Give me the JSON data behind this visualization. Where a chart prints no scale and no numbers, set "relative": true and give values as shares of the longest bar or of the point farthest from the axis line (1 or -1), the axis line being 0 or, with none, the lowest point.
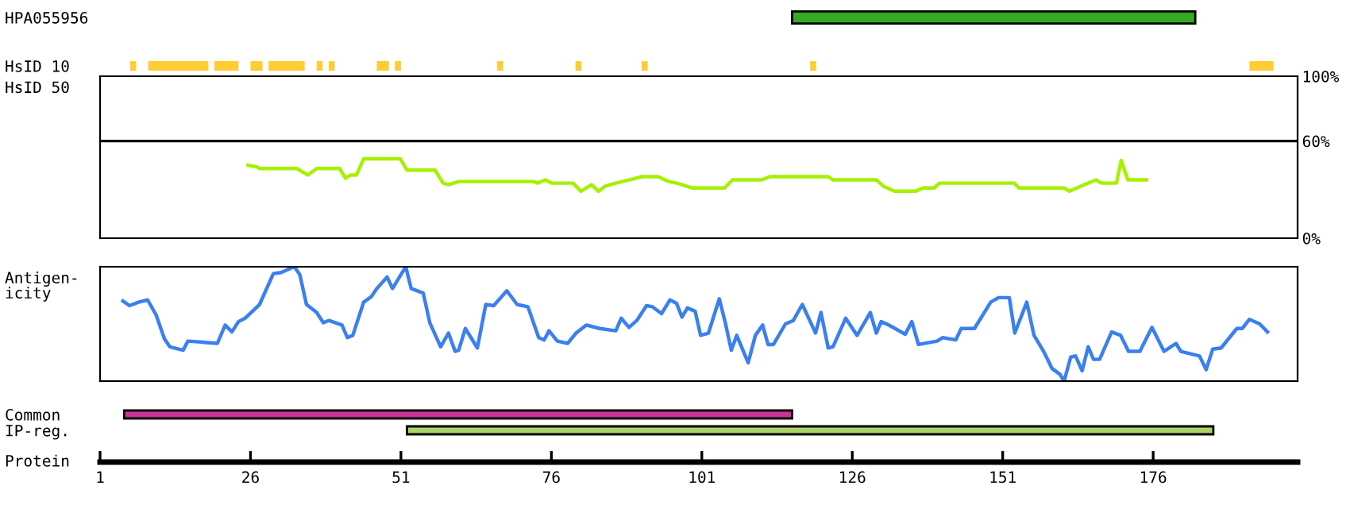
{
  "chart_data": [
    {
      "type": "bar",
      "orientation": "horizontal",
      "categories": [
        "HPA055956"
      ],
      "base": [
        116
      ],
      "values": [
        67
      ],
      "color": "#33aa22",
      "xlim": [
        1,
        200
      ],
      "tick_labels": "y",
      "grid": false,
      "legend": false
    },
    {
      "type": "bar",
      "orientation": "horizontal",
      "categories": [
        "HsID 10"
      ],
      "xlim": [
        1,
        200
      ],
      "tick_labels": "y",
      "legend": false,
      "series": [
        {
          "color": "#ffcc33",
          "base": [
            6
          ],
          "values": [
            1
          ]
        },
        {
          "color": "#ffcc33",
          "base": [
            9
          ],
          "values": [
            10
          ]
        },
        {
          "color": "#ffcc33",
          "base": [
            20
          ],
          "values": [
            4
          ]
        },
        {
          "color": "#ffcc33",
          "base": [
            26
          ],
          "values": [
            2
          ]
        },
        {
          "color": "#ffcc33",
          "base": [
            29
          ],
          "values": [
            6
          ]
        },
        {
          "color": "#ffcc33",
          "base": [
            37
          ],
          "values": [
            1
          ]
        },
        {
          "color": "#ffcc33",
          "base": [
            39
          ],
          "values": [
            1
          ]
        },
        {
          "color": "#ffcc33",
          "base": [
            47
          ],
          "values": [
            2
          ]
        },
        {
          "color": "#ffcc33",
          "base": [
            50
          ],
          "values": [
            1
          ]
        },
        {
          "color": "#ffcc33",
          "base": [
            67
          ],
          "values": [
            1
          ]
        },
        {
          "color": "#ffcc33",
          "base": [
            80
          ],
          "values": [
            1
          ]
        },
        {
          "color": "#ffcc33",
          "base": [
            91
          ],
          "values": [
            1
          ]
        },
        {
          "color": "#ffcc33",
          "base": [
            119
          ],
          "values": [
            1
          ]
        },
        {
          "color": "#ffcc33",
          "base": [
            192
          ],
          "values": [
            4
          ]
        }
      ]
    },
    {
      "type": "line",
      "ylabel": "HsID 50",
      "xlim": [
        1,
        200
      ],
      "ylim": [
        0,
        100
      ],
      "yticks": [
        {
          "value": 0,
          "label": "0%"
        },
        {
          "value": 60,
          "label": "60%"
        },
        {
          "value": 100,
          "label": "100%"
        }
      ],
      "tick_labels": "y",
      "grid": false,
      "legend": false,
      "marker": "none",
      "line_style": "solid",
      "ref_lines": [
        {
          "axis": "y",
          "value": 60,
          "color": "#000000"
        }
      ],
      "series": [
        {
          "color": "#a6f000",
          "x": [
            25.6,
            27.1,
            27.5,
            33.7,
            35.5,
            37.0,
            40.8,
            41.8,
            42.6,
            43.6,
            44.8,
            50.9,
            52.0,
            56.7,
            58.0,
            58.9,
            60.6,
            73.0,
            73.7,
            75.0,
            76.1,
            79.6,
            80.9,
            82.7,
            83.8,
            84.9,
            86.7,
            88.9,
            91.1,
            93.7,
            95.5,
            96.8,
            99.5,
            104.8,
            106.1,
            110.9,
            112.3,
            122.0,
            122.8,
            130.0,
            131.2,
            133.0,
            136.5,
            137.8,
            139.6,
            140.5,
            152.9,
            153.7,
            161.2,
            162.1,
            163.9,
            166.5,
            167.4,
            169.9,
            170.7,
            171.8,
            174.9
          ],
          "values": [
            45,
            44,
            43,
            43,
            39,
            43,
            43,
            37,
            39,
            39,
            49,
            49,
            42,
            42,
            34,
            33,
            35,
            35,
            34,
            36,
            34,
            34,
            29,
            33,
            29,
            32,
            34,
            36,
            38,
            38,
            35,
            34,
            31,
            31,
            36,
            36,
            38,
            38,
            36,
            36,
            32,
            29,
            29,
            31,
            31,
            34,
            34,
            31,
            31,
            29,
            32,
            36,
            34,
            34,
            48,
            36,
            36
          ]
        }
      ]
    },
    {
      "type": "line",
      "ylabel": "Antigen-\nicity",
      "relative": true,
      "xlim": [
        1,
        200
      ],
      "tick_labels": false,
      "grid": false,
      "legend": false,
      "marker": "none",
      "line_style": "solid",
      "series": [
        {
          "color": "#3b7ff0",
          "x": [
            4.8,
            5.9,
            7.4,
            8.9,
            10.3,
            11.7,
            12.6,
            14.8,
            15.6,
            20.5,
            21.8,
            22.9,
            24.0,
            25.1,
            27.5,
            29.8,
            31.1,
            32.8,
            33.3,
            34.2,
            35.3,
            37.0,
            38.1,
            39.0,
            41.2,
            42.1,
            43.0,
            44.8,
            46.1,
            47.0,
            48.7,
            49.6,
            51.8,
            52.7,
            54.7,
            55.8,
            57.6,
            58.9,
            60.0,
            60.6,
            61.7,
            63.7,
            65.1,
            66.4,
            68.6,
            70.3,
            72.1,
            73.9,
            74.8,
            75.6,
            77.0,
            78.7,
            80.1,
            81.8,
            84.0,
            86.7,
            87.6,
            88.9,
            90.2,
            91.8,
            92.8,
            94.3,
            95.7,
            96.8,
            97.7,
            98.6,
            99.9,
            100.8,
            102.1,
            103.9,
            104.9,
            105.9,
            106.8,
            108.7,
            109.9,
            111.1,
            112.0,
            112.9,
            114.9,
            116.2,
            117.7,
            119.9,
            120.8,
            122.0,
            122.8,
            124.9,
            126.8,
            129.0,
            130.0,
            130.8,
            132.1,
            134.8,
            135.9,
            137.0,
            140.1,
            141.0,
            143.2,
            144.1,
            146.3,
            149.0,
            150.3,
            152.1,
            153.0,
            155.0,
            156.2,
            157.8,
            159.2,
            160.5,
            161.2,
            162.3,
            163.1,
            164.2,
            165.2,
            166.1,
            167.1,
            169.1,
            170.6,
            171.9,
            173.8,
            175.8,
            177.8,
            179.8,
            180.6,
            183.7,
            184.8,
            185.9,
            187.3,
            189.9,
            190.8,
            192.0,
            193.7,
            195.0
          ],
          "values": [
            0.7,
            0.66,
            0.69,
            0.71,
            0.58,
            0.37,
            0.3,
            0.27,
            0.35,
            0.33,
            0.49,
            0.43,
            0.52,
            0.55,
            0.67,
            0.94,
            0.95,
            0.99,
            1.0,
            0.93,
            0.67,
            0.6,
            0.51,
            0.53,
            0.49,
            0.38,
            0.4,
            0.69,
            0.74,
            0.81,
            0.91,
            0.81,
            1.0,
            0.81,
            0.77,
            0.51,
            0.3,
            0.42,
            0.26,
            0.27,
            0.46,
            0.29,
            0.67,
            0.66,
            0.79,
            0.67,
            0.65,
            0.38,
            0.36,
            0.44,
            0.35,
            0.33,
            0.42,
            0.49,
            0.46,
            0.44,
            0.55,
            0.47,
            0.53,
            0.66,
            0.65,
            0.59,
            0.71,
            0.68,
            0.56,
            0.64,
            0.61,
            0.4,
            0.42,
            0.72,
            0.51,
            0.27,
            0.4,
            0.16,
            0.4,
            0.49,
            0.32,
            0.32,
            0.5,
            0.53,
            0.67,
            0.42,
            0.6,
            0.29,
            0.3,
            0.55,
            0.4,
            0.6,
            0.42,
            0.52,
            0.49,
            0.41,
            0.52,
            0.32,
            0.35,
            0.38,
            0.36,
            0.46,
            0.46,
            0.69,
            0.73,
            0.73,
            0.42,
            0.69,
            0.4,
            0.26,
            0.11,
            0.06,
            0.0,
            0.21,
            0.22,
            0.09,
            0.3,
            0.19,
            0.19,
            0.43,
            0.4,
            0.26,
            0.26,
            0.47,
            0.26,
            0.33,
            0.26,
            0.22,
            0.1,
            0.28,
            0.29,
            0.46,
            0.46,
            0.54,
            0.5,
            0.43
          ]
        }
      ]
    },
    {
      "type": "bar",
      "orientation": "horizontal",
      "categories": [
        "Common",
        "IP-reg."
      ],
      "base": [
        5,
        52
      ],
      "values": [
        111,
        134
      ],
      "colors": [
        "#cc3399",
        "#aad46a"
      ],
      "xlabel": "Protein",
      "xlim": [
        1,
        200
      ],
      "xticks": [
        1,
        26,
        51,
        76,
        101,
        126,
        151,
        176
      ],
      "grid": false,
      "legend": false
    }
  ]
}
